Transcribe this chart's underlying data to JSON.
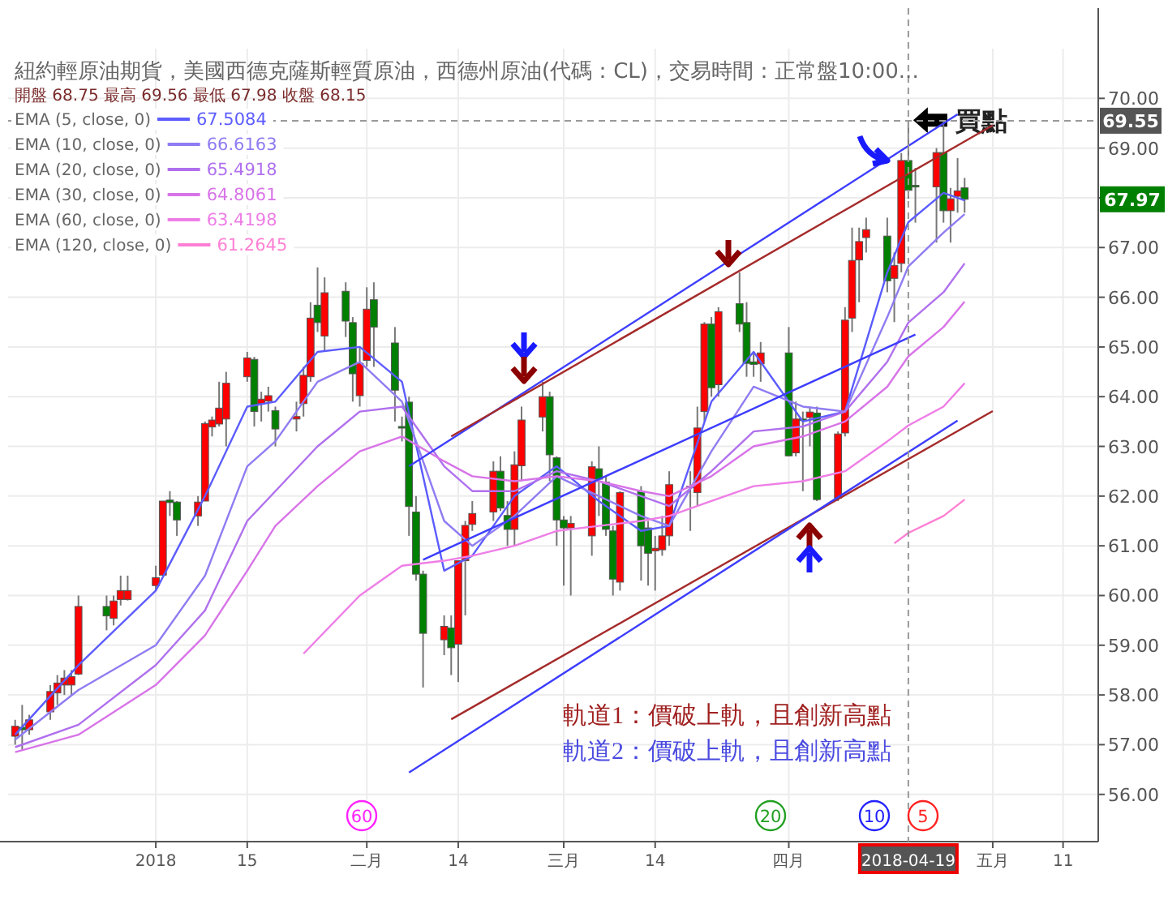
{
  "chart_data": {
    "type": "candlestick",
    "title": "紐約輕原油期貨，美國西德克薩斯輕質原油，西德州原油(代碼：CL)，交易時間：正常盤10:00...",
    "subtitle": "開盤 68.75 最高 69.56 最低 67.98 收盤 68.15",
    "x": [
      "2017-12-13",
      "2017-12-14",
      "2017-12-15",
      "2017-12-18",
      "2017-12-19",
      "2017-12-20",
      "2017-12-21",
      "2017-12-22",
      "2017-12-26",
      "2017-12-27",
      "2017-12-28",
      "2017-12-29",
      "2018-01-02",
      "2018-01-03",
      "2018-01-04",
      "2018-01-05",
      "2018-01-08",
      "2018-01-09",
      "2018-01-10",
      "2018-01-11",
      "2018-01-12",
      "2018-01-15",
      "2018-01-16",
      "2018-01-17",
      "2018-01-18",
      "2018-01-19",
      "2018-01-22",
      "2018-01-23",
      "2018-01-24",
      "2018-01-25",
      "2018-01-26",
      "2018-01-29",
      "2018-01-30",
      "2018-01-31",
      "2018-02-01",
      "2018-02-02",
      "2018-02-05",
      "2018-02-06",
      "2018-02-07",
      "2018-02-08",
      "2018-02-09",
      "2018-02-12",
      "2018-02-13",
      "2018-02-14",
      "2018-02-15",
      "2018-02-16",
      "2018-02-19",
      "2018-02-20",
      "2018-02-21",
      "2018-02-22",
      "2018-02-23",
      "2018-02-26",
      "2018-02-27",
      "2018-02-28",
      "2018-03-01",
      "2018-03-02",
      "2018-03-05",
      "2018-03-06",
      "2018-03-07",
      "2018-03-08",
      "2018-03-09",
      "2018-03-12",
      "2018-03-13",
      "2018-03-14",
      "2018-03-15",
      "2018-03-16",
      "2018-03-19",
      "2018-03-20",
      "2018-03-21",
      "2018-03-22",
      "2018-03-23",
      "2018-03-26",
      "2018-03-27",
      "2018-03-28",
      "2018-03-29",
      "2018-04-02",
      "2018-04-03",
      "2018-04-04",
      "2018-04-05",
      "2018-04-06",
      "2018-04-09",
      "2018-04-10",
      "2018-04-11",
      "2018-04-12",
      "2018-04-13",
      "2018-04-16",
      "2018-04-17",
      "2018-04-18",
      "2018-04-19",
      "2018-04-20",
      "2018-04-23",
      "2018-04-24",
      "2018-04-25",
      "2018-04-26",
      "2018-04-27"
    ],
    "ohlc": [
      [
        57.17,
        57.5,
        57.0,
        57.37
      ],
      [
        57.35,
        57.8,
        56.9,
        57.3
      ],
      [
        57.3,
        57.6,
        57.2,
        57.5
      ],
      [
        57.66,
        58.2,
        57.5,
        58.07
      ],
      [
        58.04,
        58.4,
        57.8,
        58.24
      ],
      [
        58.2,
        58.5,
        58.0,
        58.34
      ],
      [
        58.2,
        58.5,
        58.0,
        58.37
      ],
      [
        58.42,
        60.0,
        58.4,
        59.78
      ],
      [
        59.78,
        60.0,
        59.3,
        59.59
      ],
      [
        59.54,
        60.0,
        59.4,
        59.89
      ],
      [
        59.92,
        60.4,
        59.8,
        60.1
      ],
      [
        59.92,
        60.4,
        59.9,
        60.1
      ],
      [
        60.2,
        60.6,
        60.1,
        60.36
      ],
      [
        60.41,
        61.9,
        60.4,
        61.9
      ],
      [
        61.92,
        62.1,
        61.6,
        61.87
      ],
      [
        61.88,
        61.9,
        61.2,
        61.52
      ],
      [
        61.6,
        62.0,
        61.4,
        61.88
      ],
      [
        61.9,
        63.5,
        61.9,
        63.46
      ],
      [
        63.39,
        63.6,
        63.2,
        63.53
      ],
      [
        63.45,
        64.3,
        63.4,
        63.77
      ],
      [
        63.55,
        64.5,
        63.0,
        64.27
      ],
      [
        64.4,
        64.9,
        64.3,
        64.78
      ],
      [
        64.75,
        64.8,
        63.4,
        63.7
      ],
      [
        63.86,
        64.1,
        63.5,
        63.95
      ],
      [
        63.91,
        64.2,
        63.7,
        64.02
      ],
      [
        63.72,
        63.8,
        63.0,
        63.35
      ],
      [
        63.55,
        63.9,
        63.3,
        63.6
      ],
      [
        63.86,
        64.6,
        63.6,
        64.43
      ],
      [
        64.4,
        65.9,
        64.3,
        65.58
      ],
      [
        65.84,
        66.6,
        65.3,
        65.49
      ],
      [
        65.22,
        66.4,
        64.9,
        66.09
      ],
      [
        66.12,
        66.3,
        65.2,
        65.52
      ],
      [
        65.49,
        65.6,
        63.9,
        64.46
      ],
      [
        64.02,
        65.0,
        63.8,
        64.67
      ],
      [
        64.73,
        66.2,
        64.6,
        65.76
      ],
      [
        65.95,
        66.3,
        64.6,
        65.4
      ],
      [
        65.08,
        65.4,
        63.5,
        64.13
      ],
      [
        63.4,
        63.6,
        63.1,
        63.37
      ],
      [
        63.89,
        64.0,
        61.2,
        61.79
      ],
      [
        61.68,
        62.0,
        60.3,
        60.43
      ],
      [
        60.43,
        60.5,
        58.15,
        59.24
      ],
      [
        59.11,
        59.6,
        58.8,
        59.38
      ],
      [
        59.35,
        59.6,
        58.4,
        58.95
      ],
      [
        59.02,
        60.7,
        58.26,
        60.7
      ],
      [
        60.7,
        61.5,
        59.6,
        61.41
      ],
      [
        61.43,
        61.9,
        61.3,
        61.65
      ],
      [
        61.68,
        62.7,
        61.5,
        62.5
      ],
      [
        62.5,
        62.8,
        61.7,
        61.76
      ],
      [
        61.61,
        61.9,
        61.0,
        61.33
      ],
      [
        61.33,
        62.9,
        61.0,
        62.63
      ],
      [
        62.61,
        63.8,
        62.3,
        63.53
      ],
      [
        63.59,
        64.3,
        63.3,
        64.0
      ],
      [
        64.0,
        64.1,
        62.3,
        62.83
      ],
      [
        62.77,
        62.8,
        61.0,
        61.52
      ],
      [
        61.52,
        61.6,
        60.2,
        61.36
      ],
      [
        61.36,
        61.6,
        60.0,
        61.45
      ],
      [
        61.2,
        62.7,
        60.8,
        62.59
      ],
      [
        62.55,
        63.0,
        61.6,
        62.34
      ],
      [
        62.28,
        62.4,
        61.2,
        61.33
      ],
      [
        61.3,
        61.4,
        60.0,
        60.33
      ],
      [
        60.27,
        62.1,
        60.1,
        62.07
      ],
      [
        62.09,
        62.2,
        60.3,
        61.0
      ],
      [
        61.36,
        61.5,
        60.2,
        60.85
      ],
      [
        60.9,
        61.2,
        60.1,
        60.95
      ],
      [
        60.92,
        61.6,
        60.8,
        61.2
      ],
      [
        61.2,
        62.5,
        61.0,
        62.23
      ],
      [
        62.2,
        62.5,
        61.3,
        62.18
      ],
      [
        62.07,
        63.8,
        61.8,
        63.37
      ],
      [
        63.7,
        65.5,
        63.5,
        65.46
      ],
      [
        65.46,
        65.6,
        64.0,
        64.18
      ],
      [
        64.24,
        65.8,
        64.0,
        65.71
      ],
      [
        65.87,
        66.5,
        65.3,
        65.46
      ],
      [
        65.49,
        65.9,
        64.4,
        64.67
      ],
      [
        64.7,
        64.9,
        64.4,
        64.65
      ],
      [
        64.66,
        65.1,
        64.3,
        64.88
      ],
      [
        64.88,
        65.4,
        62.8,
        62.81
      ],
      [
        62.87,
        63.9,
        62.8,
        63.55
      ],
      [
        63.55,
        63.7,
        62.1,
        63.53
      ],
      [
        63.58,
        63.8,
        63.0,
        63.69
      ],
      [
        63.67,
        63.8,
        61.9,
        61.93
      ],
      [
        61.96,
        63.3,
        61.9,
        63.25
      ],
      [
        63.27,
        65.8,
        63.2,
        65.54
      ],
      [
        65.58,
        67.4,
        65.3,
        66.74
      ],
      [
        66.75,
        67.4,
        65.9,
        67.12
      ],
      [
        67.2,
        67.6,
        66.9,
        67.36
      ],
      [
        67.23,
        67.6,
        66.1,
        66.33
      ],
      [
        66.38,
        66.9,
        65.5,
        66.64
      ],
      [
        66.68,
        68.9,
        66.5,
        68.75
      ],
      [
        68.75,
        69.56,
        67.98,
        68.15
      ],
      [
        68.25,
        68.6,
        67.5,
        68.22
      ],
      [
        68.22,
        69.0,
        67.1,
        68.91
      ],
      [
        68.91,
        69.55,
        67.5,
        67.74
      ],
      [
        67.74,
        68.2,
        67.1,
        67.98
      ],
      [
        68.03,
        68.8,
        67.7,
        68.14
      ],
      [
        68.2,
        68.4,
        67.7,
        67.97
      ]
    ],
    "colors": [
      "#ff0000",
      "#008000",
      "#ff0000",
      "#ff0000",
      "#ff0000",
      "#ff0000",
      "#ff0000",
      "#ff0000",
      "#008000",
      "#ff0000",
      "#ff0000",
      "#ff0000",
      "#ff0000",
      "#ff0000",
      "#008000",
      "#008000",
      "#ff0000",
      "#ff0000",
      "#ff0000",
      "#ff0000",
      "#ff0000",
      "#ff0000",
      "#008000",
      "#ff0000",
      "#ff0000",
      "#008000",
      "#ff0000",
      "#ff0000",
      "#ff0000",
      "#008000",
      "#ff0000",
      "#008000",
      "#008000",
      "#ff0000",
      "#ff0000",
      "#008000",
      "#008000",
      "#008000",
      "#008000",
      "#008000",
      "#008000",
      "#ff0000",
      "#008000",
      "#ff0000",
      "#ff0000",
      "#ff0000",
      "#ff0000",
      "#008000",
      "#008000",
      "#ff0000",
      "#ff0000",
      "#ff0000",
      "#008000",
      "#008000",
      "#008000",
      "#ff0000",
      "#ff0000",
      "#008000",
      "#008000",
      "#008000",
      "#ff0000",
      "#008000",
      "#008000",
      "#ff0000",
      "#ff0000",
      "#ff0000",
      "#008000",
      "#ff0000",
      "#ff0000",
      "#008000",
      "#ff0000",
      "#008000",
      "#008000",
      "#008000",
      "#ff0000",
      "#008000",
      "#ff0000",
      "#008000",
      "#ff0000",
      "#008000",
      "#ff0000",
      "#ff0000",
      "#ff0000",
      "#ff0000",
      "#ff0000",
      "#008000",
      "#ff0000",
      "#ff0000",
      "#008000",
      "#008000",
      "#ff0000",
      "#008000",
      "#ff0000",
      "#ff0000",
      "#008000"
    ],
    "series": [
      {
        "name": "EMA (5, close, 0)",
        "type": "line",
        "color": "#5c5cff",
        "x": [
          "2017-12-13",
          "2017-12-22",
          "2018-01-02",
          "2018-01-09",
          "2018-01-15",
          "2018-01-19",
          "2018-01-25",
          "2018-01-31",
          "2018-02-06",
          "2018-02-12",
          "2018-02-16",
          "2018-02-22",
          "2018-02-28",
          "2018-03-06",
          "2018-03-12",
          "2018-03-16",
          "2018-03-22",
          "2018-03-28",
          "2018-04-04",
          "2018-04-10",
          "2018-04-16",
          "2018-04-19",
          "2018-04-24",
          "2018-04-27"
        ],
        "values": [
          57.2,
          58.6,
          60.1,
          62.0,
          63.8,
          63.9,
          64.9,
          65.0,
          64.3,
          60.5,
          60.8,
          62.0,
          62.6,
          61.9,
          61.3,
          61.4,
          63.9,
          64.9,
          63.5,
          63.7,
          66.5,
          67.51,
          68.1,
          67.95
        ]
      },
      {
        "name": "EMA (10, close, 0)",
        "type": "line",
        "color": "#8f7cf2",
        "x": [
          "2017-12-13",
          "2017-12-22",
          "2018-01-02",
          "2018-01-09",
          "2018-01-15",
          "2018-01-19",
          "2018-01-25",
          "2018-01-31",
          "2018-02-06",
          "2018-02-12",
          "2018-02-16",
          "2018-02-22",
          "2018-02-28",
          "2018-03-06",
          "2018-03-12",
          "2018-03-16",
          "2018-03-22",
          "2018-03-28",
          "2018-04-04",
          "2018-04-10",
          "2018-04-16",
          "2018-04-19",
          "2018-04-24",
          "2018-04-27"
        ],
        "values": [
          57.1,
          58.1,
          59.0,
          60.4,
          62.6,
          63.1,
          64.3,
          64.7,
          63.9,
          61.5,
          61.0,
          61.6,
          62.4,
          62.0,
          61.6,
          61.4,
          62.9,
          64.2,
          63.8,
          63.7,
          65.6,
          66.62,
          67.3,
          67.67
        ]
      },
      {
        "name": "EMA (20, close, 0)",
        "type": "line",
        "color": "#b070ee",
        "x": [
          "2017-12-13",
          "2017-12-22",
          "2018-01-02",
          "2018-01-09",
          "2018-01-15",
          "2018-01-19",
          "2018-01-25",
          "2018-01-31",
          "2018-02-06",
          "2018-02-12",
          "2018-02-16",
          "2018-02-22",
          "2018-02-28",
          "2018-03-06",
          "2018-03-12",
          "2018-03-16",
          "2018-03-22",
          "2018-03-28",
          "2018-04-04",
          "2018-04-10",
          "2018-04-16",
          "2018-04-19",
          "2018-04-24",
          "2018-04-27"
        ],
        "values": [
          56.95,
          57.4,
          58.6,
          59.7,
          61.5,
          62.1,
          63.0,
          63.7,
          63.8,
          62.6,
          62.1,
          62.1,
          62.5,
          62.3,
          62.0,
          61.8,
          62.5,
          63.3,
          63.4,
          63.7,
          64.7,
          65.49,
          66.1,
          66.68
        ]
      },
      {
        "name": "EMA (30, close, 0)",
        "type": "line",
        "color": "#d874e8",
        "x": [
          "2017-12-13",
          "2017-12-22",
          "2018-01-02",
          "2018-01-09",
          "2018-01-15",
          "2018-01-19",
          "2018-01-25",
          "2018-01-31",
          "2018-02-06",
          "2018-02-12",
          "2018-02-16",
          "2018-02-22",
          "2018-02-28",
          "2018-03-06",
          "2018-03-12",
          "2018-03-16",
          "2018-03-22",
          "2018-03-28",
          "2018-04-04",
          "2018-04-10",
          "2018-04-16",
          "2018-04-19",
          "2018-04-24",
          "2018-04-27"
        ],
        "values": [
          56.85,
          57.2,
          58.2,
          59.2,
          60.5,
          61.4,
          62.2,
          62.9,
          63.2,
          62.7,
          62.4,
          62.3,
          62.4,
          62.3,
          62.1,
          62.0,
          62.4,
          63.0,
          63.2,
          63.5,
          64.2,
          64.81,
          65.4,
          65.91
        ]
      },
      {
        "name": "EMA (60, close, 0)",
        "type": "line",
        "color": "#ee7ee6",
        "x": [
          "2018-01-23",
          "2018-01-31",
          "2018-02-06",
          "2018-02-12",
          "2018-02-16",
          "2018-02-22",
          "2018-02-28",
          "2018-03-06",
          "2018-03-12",
          "2018-03-16",
          "2018-03-22",
          "2018-03-28",
          "2018-04-04",
          "2018-04-10",
          "2018-04-16",
          "2018-04-19",
          "2018-04-24",
          "2018-04-27"
        ],
        "values": [
          58.83,
          60.0,
          60.6,
          60.7,
          60.8,
          61.0,
          61.3,
          61.4,
          61.5,
          61.6,
          61.9,
          62.2,
          62.3,
          62.5,
          63.1,
          63.42,
          63.8,
          64.27
        ]
      },
      {
        "name": "EMA (120, close, 0)",
        "type": "line",
        "color": "#ff7fd4",
        "x": [
          "2018-04-17",
          "2018-04-19",
          "2018-04-24",
          "2018-04-27"
        ],
        "values": [
          61.05,
          61.26,
          61.6,
          61.93
        ]
      },
      {
        "type": "line",
        "color": "#3d3dff",
        "x": [
          "2018-02-07",
          "2018-04-26"
        ],
        "values": [
          62.6,
          69.68
        ]
      },
      {
        "type": "line",
        "color": "#a52a2a",
        "x": [
          "2018-02-13",
          "2018-05-01"
        ],
        "values": [
          63.2,
          69.46
        ]
      },
      {
        "type": "line",
        "color": "#3d3dff",
        "x": [
          "2018-02-09",
          "2018-04-20"
        ],
        "values": [
          60.72,
          65.25
        ]
      },
      {
        "type": "line",
        "color": "#a52a2a",
        "x": [
          "2018-02-13",
          "2018-05-01"
        ],
        "values": [
          57.51,
          63.71
        ]
      },
      {
        "type": "line",
        "color": "#3d3dff",
        "x": [
          "2018-02-07",
          "2018-04-26"
        ],
        "values": [
          56.44,
          63.52
        ]
      }
    ],
    "xlim": [
      "2017-12-12",
      "2018-05-16"
    ],
    "xticks": [
      {
        "value": "2018-01-02",
        "label": "2018"
      },
      {
        "value": "2018-01-15",
        "label": "15"
      },
      {
        "value": "2018-02-01",
        "label": "二月"
      },
      {
        "value": "2018-02-14",
        "label": "14"
      },
      {
        "value": "2018-03-01",
        "label": "三月"
      },
      {
        "value": "2018-03-14",
        "label": "14"
      },
      {
        "value": "2018-04-02",
        "label": "四月"
      },
      {
        "value": "2018-05-01",
        "label": "五月"
      },
      {
        "value": "2018-05-11",
        "label": "11"
      }
    ],
    "ylim": [
      55.05,
      71.0
    ],
    "yticks": [
      {
        "value": 56,
        "label": "56.00"
      },
      {
        "value": 57,
        "label": "57.00"
      },
      {
        "value": 58,
        "label": "58.00"
      },
      {
        "value": 59,
        "label": "59.00"
      },
      {
        "value": 60,
        "label": "60.00"
      },
      {
        "value": 61,
        "label": "61.00"
      },
      {
        "value": 62,
        "label": "62.00"
      },
      {
        "value": 63,
        "label": "63.00"
      },
      {
        "value": 64,
        "label": "64.00"
      },
      {
        "value": 65,
        "label": "65.00"
      },
      {
        "value": 66,
        "label": "66.00"
      },
      {
        "value": 67,
        "label": "67.00"
      },
      {
        "value": 68,
        "label": null
      },
      {
        "value": 69,
        "label": "69.00"
      },
      {
        "value": 70,
        "label": "70.00"
      }
    ],
    "grid": true,
    "legend": "top left",
    "ref_lines": [
      {
        "axis": "y",
        "value": 69.55,
        "label": "69.55",
        "line_style": "dashed"
      },
      {
        "axis": "x",
        "value": "2018-04-19",
        "label": "2018-04-19",
        "line_style": "dashed"
      }
    ],
    "annotations": [
      "67.5084",
      "66.6163",
      "65.4918",
      "64.8061",
      "63.4198",
      "61.2645",
      "軌道1：價破上軌，且創新高點",
      "軌道2：價破上軌，且創新高點",
      "67.97",
      "60",
      "20",
      "10",
      "5",
      {
        "text": "買點",
        "x": "2018-04-19",
        "y": 69.56
      }
    ]
  }
}
